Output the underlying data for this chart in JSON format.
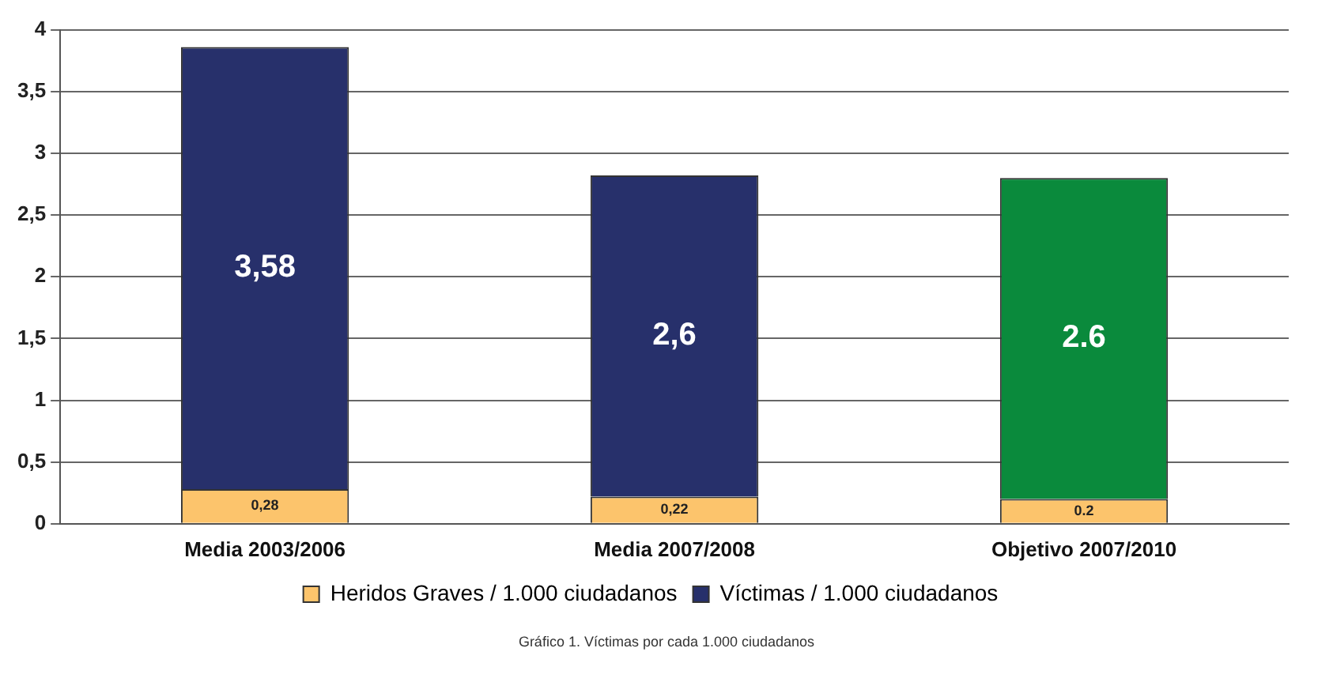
{
  "chart_data": {
    "type": "bar",
    "stacked": true,
    "categories": [
      "Media 2003/2006",
      "Media 2007/2008",
      "Objetivo 2007/2010"
    ],
    "series": [
      {
        "name": "Heridos Graves / 1.000 ciudadanos",
        "color": "#fcc46c",
        "values": [
          0.28,
          0.22,
          0.2
        ],
        "value_labels": [
          "0,28",
          "0,22",
          "0.2"
        ]
      },
      {
        "name": "Víctimas / 1.000 ciudadanos",
        "color": "#27306b",
        "colors": [
          "#27306b",
          "#27306b",
          "#0a8a3c"
        ],
        "values": [
          3.58,
          2.6,
          2.6
        ],
        "value_labels": [
          "3,58",
          "2,6",
          "2.6"
        ]
      }
    ],
    "ylim": [
      0,
      4
    ],
    "yticks": [
      0,
      {
        "value": 0.5,
        "label": "0,5"
      },
      1,
      {
        "value": 1.5,
        "label": "1,5"
      },
      2,
      {
        "value": 2.5,
        "label": "2,5"
      },
      3,
      {
        "value": 3.5,
        "label": "3,5"
      },
      4
    ],
    "grid": "y",
    "legend": "bottom",
    "annotations": [
      "Gráfico 1. Víctimas por cada 1.000 ciudadanos"
    ]
  }
}
